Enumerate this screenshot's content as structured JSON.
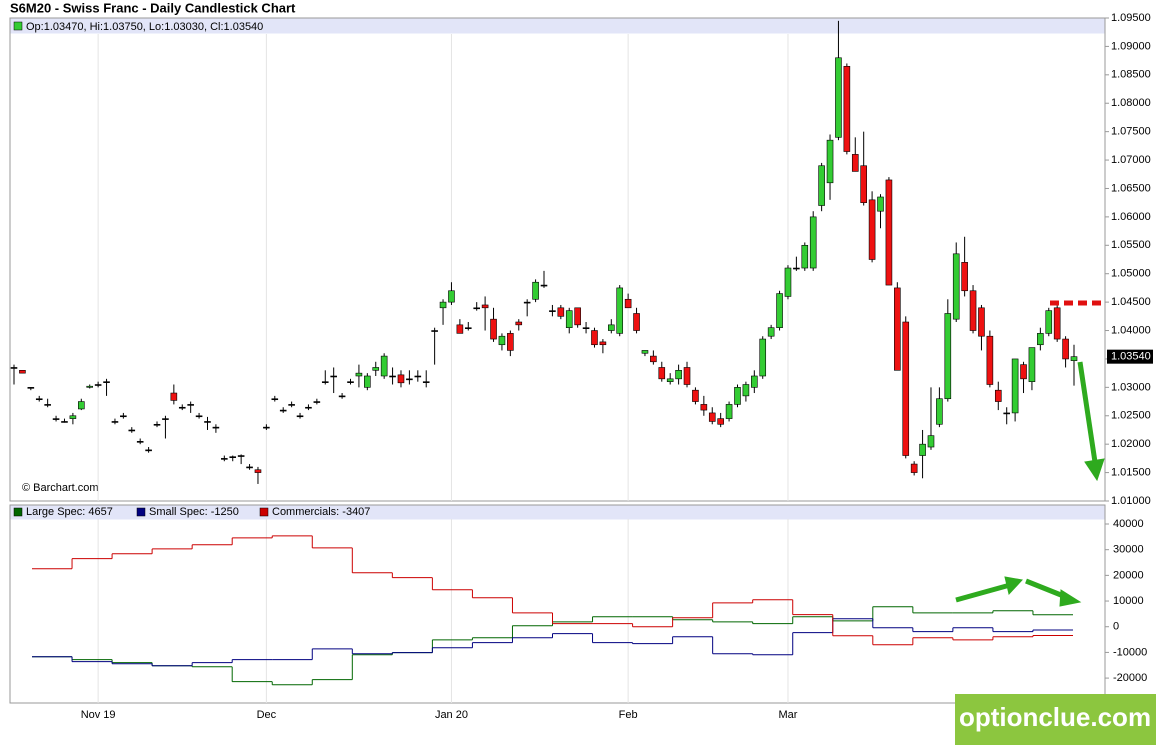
{
  "title": "S6M20 - Swiss Franc - Daily Candlestick Chart",
  "watermark": "optionclue.com",
  "chart_data": [
    {
      "type": "candlestick",
      "legend_text": "Op:1.03470, Hi:1.03750, Lo:1.03030, Cl:1.03540",
      "last_price_label": "1.03540",
      "source": "© Barchart.com",
      "up_color": "#33cc33",
      "down_color": "#ee1111",
      "categories": [
        null,
        null,
        null,
        null,
        null,
        null,
        null,
        null,
        null,
        null,
        "Nov 19",
        null,
        null,
        null,
        null,
        null,
        null,
        null,
        null,
        null,
        null,
        null,
        null,
        null,
        null,
        null,
        null,
        null,
        null,
        null,
        "Dec",
        null,
        null,
        null,
        null,
        null,
        null,
        null,
        null,
        null,
        null,
        null,
        null,
        null,
        null,
        null,
        null,
        null,
        null,
        null,
        null,
        null,
        "Jan 20",
        null,
        null,
        null,
        null,
        null,
        null,
        null,
        null,
        null,
        null,
        null,
        null,
        null,
        null,
        null,
        null,
        null,
        null,
        null,
        null,
        "Feb",
        null,
        null,
        null,
        null,
        null,
        null,
        null,
        null,
        null,
        null,
        null,
        null,
        null,
        null,
        null,
        null,
        null,
        null,
        "Mar",
        null,
        null,
        null,
        null,
        null,
        null,
        null,
        null,
        null,
        null,
        null,
        null,
        null,
        null,
        null,
        null,
        null,
        null,
        null,
        null,
        null,
        null,
        null,
        null,
        null,
        null,
        null,
        null,
        null,
        null,
        null,
        null,
        null,
        null
      ],
      "ohlc": [
        [
          1.0335,
          1.034,
          1.0305,
          1.0335
        ],
        [
          1.033,
          1.033,
          1.0325,
          1.0325
        ],
        [
          1.03,
          1.03,
          1.0295,
          1.03
        ],
        [
          1.028,
          1.0285,
          1.0275,
          1.028
        ],
        [
          1.027,
          1.028,
          1.0265,
          1.027
        ],
        [
          1.0245,
          1.025,
          1.024,
          1.0245
        ],
        [
          1.024,
          1.0245,
          1.0238,
          1.024
        ],
        [
          1.0245,
          1.0255,
          1.0235,
          1.025
        ],
        [
          1.0262,
          1.028,
          1.026,
          1.0275
        ],
        [
          1.03,
          1.0305,
          1.0298,
          1.0302
        ],
        [
          1.0305,
          1.031,
          1.03,
          1.0305
        ],
        [
          1.031,
          1.0315,
          1.0285,
          1.031
        ],
        [
          1.024,
          1.0245,
          1.0235,
          1.024
        ],
        [
          1.025,
          1.0255,
          1.0245,
          1.025
        ],
        [
          1.0225,
          1.023,
          1.022,
          1.0225
        ],
        [
          1.0205,
          1.021,
          1.02,
          1.0205
        ],
        [
          1.019,
          1.0195,
          1.0185,
          1.019
        ],
        [
          1.0235,
          1.024,
          1.023,
          1.0235
        ],
        [
          1.0245,
          1.025,
          1.021,
          1.0245
        ],
        [
          1.029,
          1.0305,
          1.027,
          1.0277
        ],
        [
          1.0265,
          1.027,
          1.026,
          1.0265
        ],
        [
          1.027,
          1.0275,
          1.0255,
          1.027
        ],
        [
          1.025,
          1.0255,
          1.0245,
          1.025
        ],
        [
          1.024,
          1.0248,
          1.0225,
          1.024
        ],
        [
          1.023,
          1.0235,
          1.022,
          1.023
        ],
        [
          1.0175,
          1.018,
          1.017,
          1.0175
        ],
        [
          1.0178,
          1.018,
          1.017,
          1.0178
        ],
        [
          1.018,
          1.0182,
          1.0165,
          1.018
        ],
        [
          1.016,
          1.0165,
          1.0155,
          1.016
        ],
        [
          1.0155,
          1.016,
          1.013,
          1.015
        ],
        [
          1.023,
          1.0235,
          1.0225,
          1.023
        ],
        [
          1.028,
          1.0285,
          1.0275,
          1.028
        ],
        [
          1.026,
          1.0265,
          1.0255,
          1.026
        ],
        [
          1.027,
          1.0275,
          1.0265,
          1.027
        ],
        [
          1.025,
          1.0255,
          1.0245,
          1.025
        ],
        [
          1.0265,
          1.027,
          1.026,
          1.0265
        ],
        [
          1.0275,
          1.028,
          1.027,
          1.0275
        ],
        [
          1.031,
          1.033,
          1.0305,
          1.031
        ],
        [
          1.032,
          1.0335,
          1.029,
          1.032
        ],
        [
          1.0285,
          1.029,
          1.028,
          1.0285
        ],
        [
          1.031,
          1.0315,
          1.0305,
          1.031
        ],
        [
          1.032,
          1.034,
          1.03,
          1.0325
        ],
        [
          1.03,
          1.0325,
          1.0295,
          1.032
        ],
        [
          1.033,
          1.0345,
          1.032,
          1.0335
        ],
        [
          1.032,
          1.036,
          1.0315,
          1.0355
        ],
        [
          1.032,
          1.0335,
          1.0305,
          1.032
        ],
        [
          1.0322,
          1.033,
          1.03,
          1.0308
        ],
        [
          1.0315,
          1.033,
          1.0305,
          1.0315
        ],
        [
          1.032,
          1.033,
          1.031,
          1.032
        ],
        [
          1.031,
          1.033,
          1.03,
          1.031
        ],
        [
          1.04,
          1.0405,
          1.034,
          1.04
        ],
        [
          1.044,
          1.0455,
          1.041,
          1.045
        ],
        [
          1.045,
          1.0485,
          1.0445,
          1.047
        ],
        [
          1.041,
          1.042,
          1.0395,
          1.0395
        ],
        [
          1.0405,
          1.0415,
          1.04,
          1.0405
        ],
        [
          1.044,
          1.045,
          1.0435,
          1.044
        ],
        [
          1.0445,
          1.046,
          1.04,
          1.044
        ],
        [
          1.042,
          1.044,
          1.038,
          1.0385
        ],
        [
          1.0375,
          1.0395,
          1.0365,
          1.039
        ],
        [
          1.0395,
          1.04,
          1.0355,
          1.0365
        ],
        [
          1.0415,
          1.042,
          1.04,
          1.041
        ],
        [
          1.045,
          1.0455,
          1.0425,
          1.045
        ],
        [
          1.0455,
          1.049,
          1.045,
          1.0485
        ],
        [
          1.048,
          1.0505,
          1.0475,
          1.048
        ],
        [
          1.0435,
          1.0445,
          1.0425,
          1.0435
        ],
        [
          1.044,
          1.0445,
          1.042,
          1.0425
        ],
        [
          1.0405,
          1.044,
          1.0395,
          1.0435
        ],
        [
          1.044,
          1.044,
          1.0405,
          1.041
        ],
        [
          1.0405,
          1.0415,
          1.0395,
          1.0405
        ],
        [
          1.04,
          1.0405,
          1.037,
          1.0375
        ],
        [
          1.038,
          1.0385,
          1.036,
          1.0375
        ],
        [
          1.04,
          1.042,
          1.0395,
          1.041
        ],
        [
          1.0395,
          1.048,
          1.039,
          1.0475
        ],
        [
          1.0455,
          1.0465,
          1.044,
          1.044
        ],
        [
          1.043,
          1.044,
          1.0395,
          1.04
        ],
        [
          1.036,
          1.0365,
          1.0355,
          1.0365
        ],
        [
          1.0355,
          1.0365,
          1.034,
          1.0345
        ],
        [
          1.0335,
          1.0345,
          1.031,
          1.0315
        ],
        [
          1.031,
          1.0325,
          1.0305,
          1.0315
        ],
        [
          1.0315,
          1.034,
          1.0305,
          1.033
        ],
        [
          1.0335,
          1.0345,
          1.03,
          1.0305
        ],
        [
          1.0295,
          1.03,
          1.027,
          1.0275
        ],
        [
          1.027,
          1.0285,
          1.025,
          1.026
        ],
        [
          1.0255,
          1.0265,
          1.0235,
          1.024
        ],
        [
          1.0245,
          1.0255,
          1.023,
          1.0235
        ],
        [
          1.0245,
          1.0275,
          1.024,
          1.027
        ],
        [
          1.027,
          1.0305,
          1.0265,
          1.03
        ],
        [
          1.0285,
          1.031,
          1.0275,
          1.0305
        ],
        [
          1.03,
          1.033,
          1.029,
          1.032
        ],
        [
          1.032,
          1.039,
          1.0315,
          1.0385
        ],
        [
          1.039,
          1.041,
          1.0385,
          1.0405
        ],
        [
          1.0405,
          1.047,
          1.04,
          1.0465
        ],
        [
          1.046,
          1.0515,
          1.0455,
          1.051
        ],
        [
          1.051,
          1.053,
          1.0505,
          1.051
        ],
        [
          1.051,
          1.0555,
          1.0505,
          1.055
        ],
        [
          1.051,
          1.061,
          1.0505,
          1.06
        ],
        [
          1.062,
          1.0695,
          1.061,
          1.069
        ],
        [
          1.066,
          1.0745,
          1.063,
          1.0735
        ],
        [
          1.074,
          1.0945,
          1.0735,
          1.088
        ],
        [
          1.0865,
          1.087,
          1.071,
          1.0715
        ],
        [
          1.071,
          1.074,
          1.068,
          1.068
        ],
        [
          1.069,
          1.075,
          1.062,
          1.0625
        ],
        [
          1.063,
          1.0645,
          1.052,
          1.0525
        ],
        [
          1.061,
          1.064,
          1.058,
          1.0635
        ],
        [
          1.0665,
          1.067,
          1.048,
          1.048
        ],
        [
          1.0475,
          1.0485,
          1.033,
          1.033
        ],
        [
          1.0415,
          1.0425,
          1.0175,
          1.018
        ],
        [
          1.0165,
          1.017,
          1.0145,
          1.015
        ],
        [
          1.018,
          1.0225,
          1.014,
          1.02
        ],
        [
          1.0195,
          1.03,
          1.019,
          1.0215
        ],
        [
          1.0235,
          1.03,
          1.023,
          1.028
        ],
        [
          1.028,
          1.0455,
          1.0275,
          1.043
        ],
        [
          1.042,
          1.0555,
          1.0415,
          1.0535
        ],
        [
          1.052,
          1.0565,
          1.046,
          1.047
        ],
        [
          1.047,
          1.048,
          1.0395,
          1.04
        ],
        [
          1.044,
          1.0445,
          1.0365,
          1.039
        ],
        [
          1.039,
          1.04,
          1.03,
          1.0305
        ],
        [
          1.0295,
          1.031,
          1.026,
          1.0275
        ],
        [
          1.0255,
          1.0265,
          1.0235,
          1.0255
        ],
        [
          1.0255,
          1.035,
          1.024,
          1.035
        ],
        [
          1.034,
          1.0345,
          1.029,
          1.0315
        ],
        [
          1.031,
          1.037,
          1.0295,
          1.037
        ],
        [
          1.0375,
          1.0405,
          1.0365,
          1.0395
        ],
        [
          1.0395,
          1.044,
          1.039,
          1.0435
        ],
        [
          1.044,
          1.0445,
          1.038,
          1.0385
        ],
        [
          1.0385,
          1.039,
          1.0335,
          1.035
        ],
        [
          1.0347,
          1.0375,
          1.0303,
          1.0354
        ]
      ],
      "ylim": [
        1.01,
        1.095
      ],
      "yticks": [
        {
          "value": 1.01,
          "label": "1.01000"
        },
        {
          "value": 1.015,
          "label": "1.01500"
        },
        {
          "value": 1.02,
          "label": "1.02000"
        },
        {
          "value": 1.025,
          "label": "1.02500"
        },
        {
          "value": 1.03,
          "label": "1.03000"
        },
        {
          "value": 1.035,
          "label": "1.03500"
        },
        {
          "value": 1.04,
          "label": "1.04000"
        },
        {
          "value": 1.045,
          "label": "1.04500"
        },
        {
          "value": 1.05,
          "label": "1.05000"
        },
        {
          "value": 1.055,
          "label": "1.05500"
        },
        {
          "value": 1.06,
          "label": "1.06000"
        },
        {
          "value": 1.065,
          "label": "1.06500"
        },
        {
          "value": 1.07,
          "label": "1.07000"
        },
        {
          "value": 1.075,
          "label": "1.07500"
        },
        {
          "value": 1.08,
          "label": "1.08000"
        },
        {
          "value": 1.085,
          "label": "1.08500"
        },
        {
          "value": 1.09,
          "label": "1.09000"
        },
        {
          "value": 1.095,
          "label": "1.09500"
        }
      ]
    },
    {
      "type": "step",
      "series": [
        {
          "name": "Large Spec: 4657",
          "color": "#006600",
          "values": [
            -11700,
            -12800,
            -14000,
            -15200,
            -15600,
            -21400,
            -22600,
            -20600,
            -10900,
            -10100,
            -5100,
            -4300,
            400,
            1900,
            3900,
            3900,
            2700,
            1900,
            1200,
            3900,
            2300,
            7800,
            5400,
            5400,
            6200,
            4657
          ]
        },
        {
          "name": "Small Spec: -1250",
          "color": "#000080",
          "values": [
            -11700,
            -13600,
            -14400,
            -15200,
            -14000,
            -12800,
            -12800,
            -8600,
            -10500,
            -10100,
            -8200,
            -6200,
            -4300,
            -2700,
            -6200,
            -6600,
            -3900,
            -10500,
            -10900,
            -2300,
            3100,
            -400,
            -1900,
            -400,
            -1900,
            -1250
          ]
        },
        {
          "name": "Commercials: -3407",
          "color": "#cc0000",
          "values": [
            22600,
            26500,
            28400,
            30300,
            31900,
            34600,
            35400,
            30700,
            21000,
            19100,
            14400,
            11300,
            5400,
            1200,
            1200,
            0,
            3500,
            9300,
            10500,
            4700,
            -3500,
            -7000,
            -4300,
            -5100,
            -3900,
            -3407
          ]
        }
      ],
      "ylim": [
        -29700,
        47400
      ],
      "yticks": [
        -20000,
        -10000,
        0,
        10000,
        20000,
        30000,
        40000
      ]
    }
  ]
}
